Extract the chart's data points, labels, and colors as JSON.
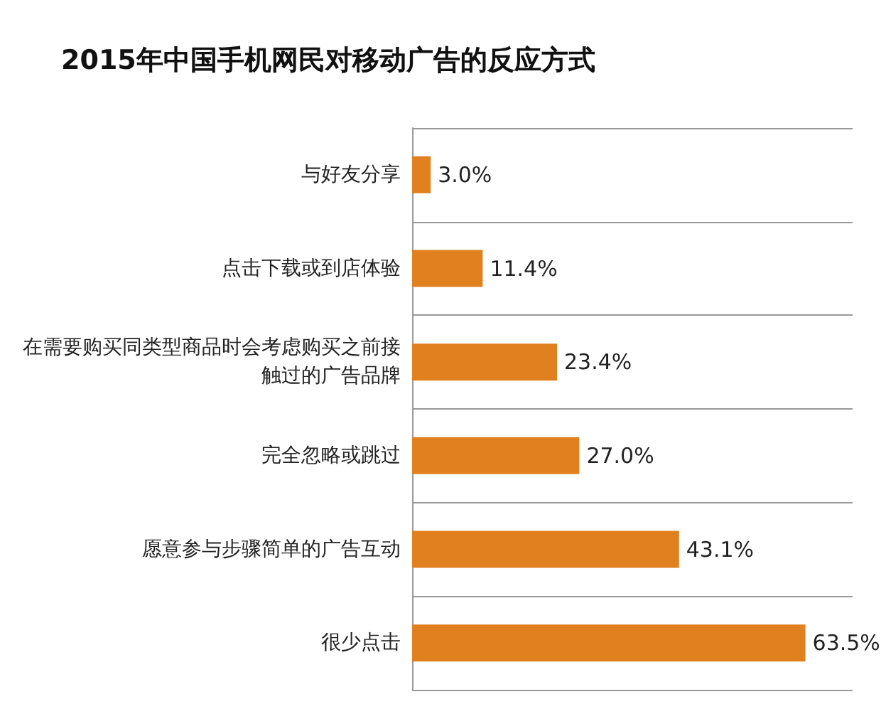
{
  "chart_data": {
    "type": "bar",
    "orientation": "horizontal",
    "title": "2015年中国手机网民对移动广告的反应方式",
    "categories": [
      "与好友分享",
      "点击下载或到店体验",
      "在需要购买同类型商品时会考虑购买之前接触过的广告品牌",
      "完全忽略或跳过",
      "愿意参与步骤简单的广告互动",
      "很少点击"
    ],
    "values": [
      3.0,
      11.4,
      23.4,
      27.0,
      43.1,
      63.5
    ],
    "value_labels": [
      "3.0%",
      "11.4%",
      "23.4%",
      "27.0%",
      "43.1%",
      "63.5%"
    ],
    "color": "#e0801e",
    "grid": "y"
  }
}
